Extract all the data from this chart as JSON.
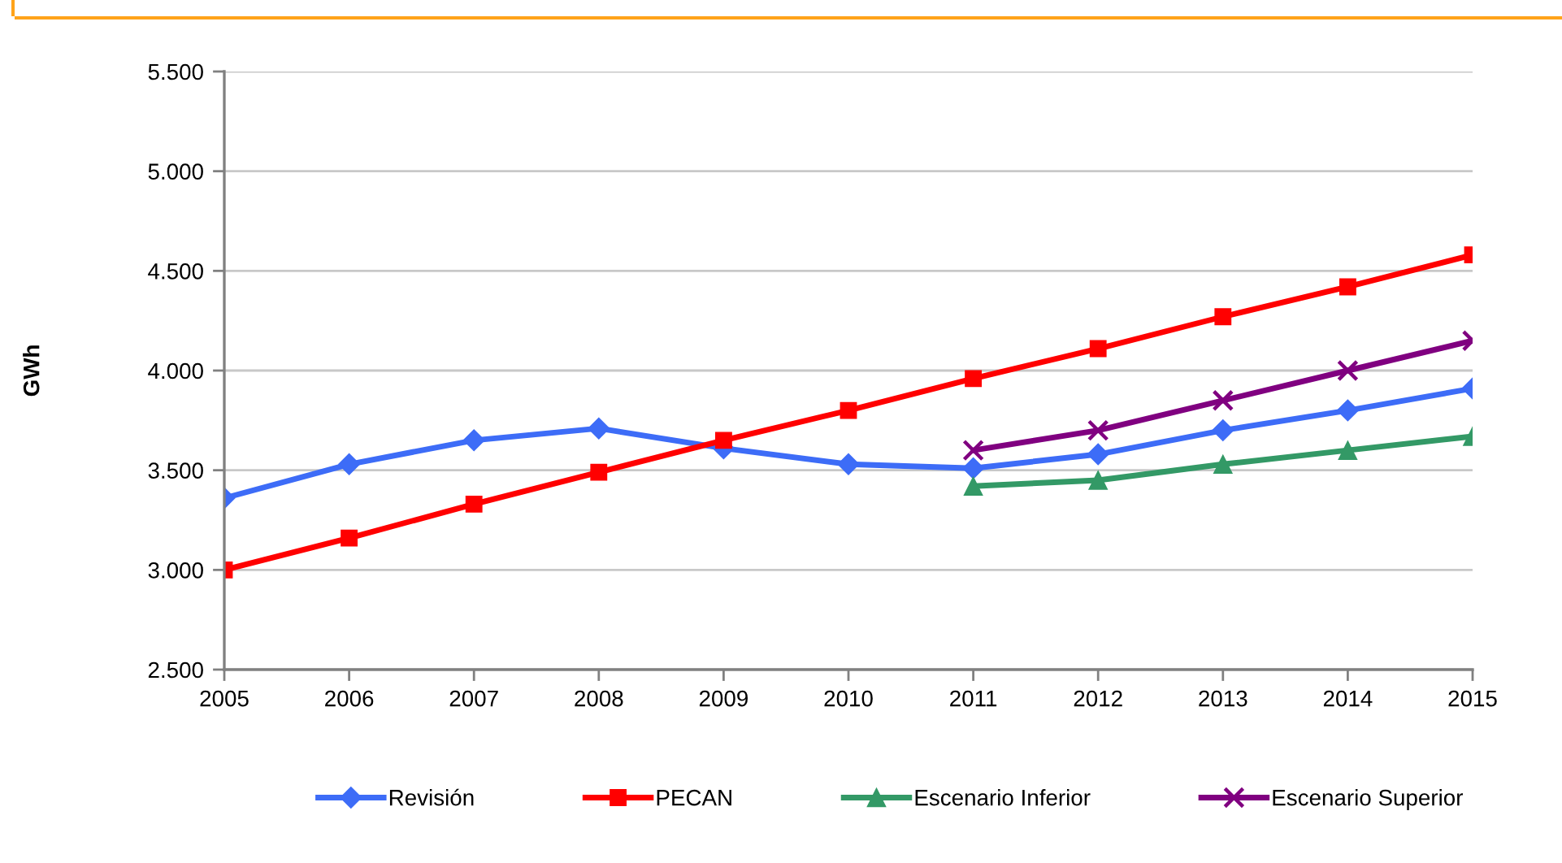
{
  "chart_data": {
    "type": "line",
    "ylabel": "GWh",
    "categories": [
      "2005",
      "2006",
      "2007",
      "2008",
      "2009",
      "2010",
      "2011",
      "2012",
      "2013",
      "2014",
      "2015"
    ],
    "series": [
      {
        "name": "Revisión",
        "color": "#3d6cf7",
        "marker": "diamond",
        "values": [
          3360,
          3530,
          3650,
          3710,
          3610,
          3530,
          3510,
          3580,
          3700,
          3800,
          3910
        ]
      },
      {
        "name": "PECAN",
        "color": "#ff0000",
        "marker": "square",
        "values": [
          3000,
          3160,
          3330,
          3490,
          3650,
          3800,
          3960,
          4110,
          4270,
          4420,
          4580
        ]
      },
      {
        "name": "Escenario Inferior",
        "color": "#339966",
        "marker": "triangle",
        "values": [
          null,
          null,
          null,
          null,
          null,
          null,
          3420,
          3450,
          3530,
          3600,
          3670
        ]
      },
      {
        "name": "Escenario Superior",
        "color": "#800080",
        "marker": "cross",
        "values": [
          null,
          null,
          null,
          null,
          null,
          null,
          3600,
          3700,
          3850,
          4000,
          4150
        ]
      }
    ],
    "ylim": [
      2500,
      5500
    ],
    "yticks": [
      {
        "value": 2500,
        "label": "2.500"
      },
      {
        "value": 3000,
        "label": "3.000"
      },
      {
        "value": 3500,
        "label": "3.500"
      },
      {
        "value": 4000,
        "label": "4.000"
      },
      {
        "value": 4500,
        "label": "4.500"
      },
      {
        "value": 5000,
        "label": "5.000"
      },
      {
        "value": 5500,
        "label": "5.500"
      }
    ],
    "grid": "y",
    "legend": "bottom"
  }
}
